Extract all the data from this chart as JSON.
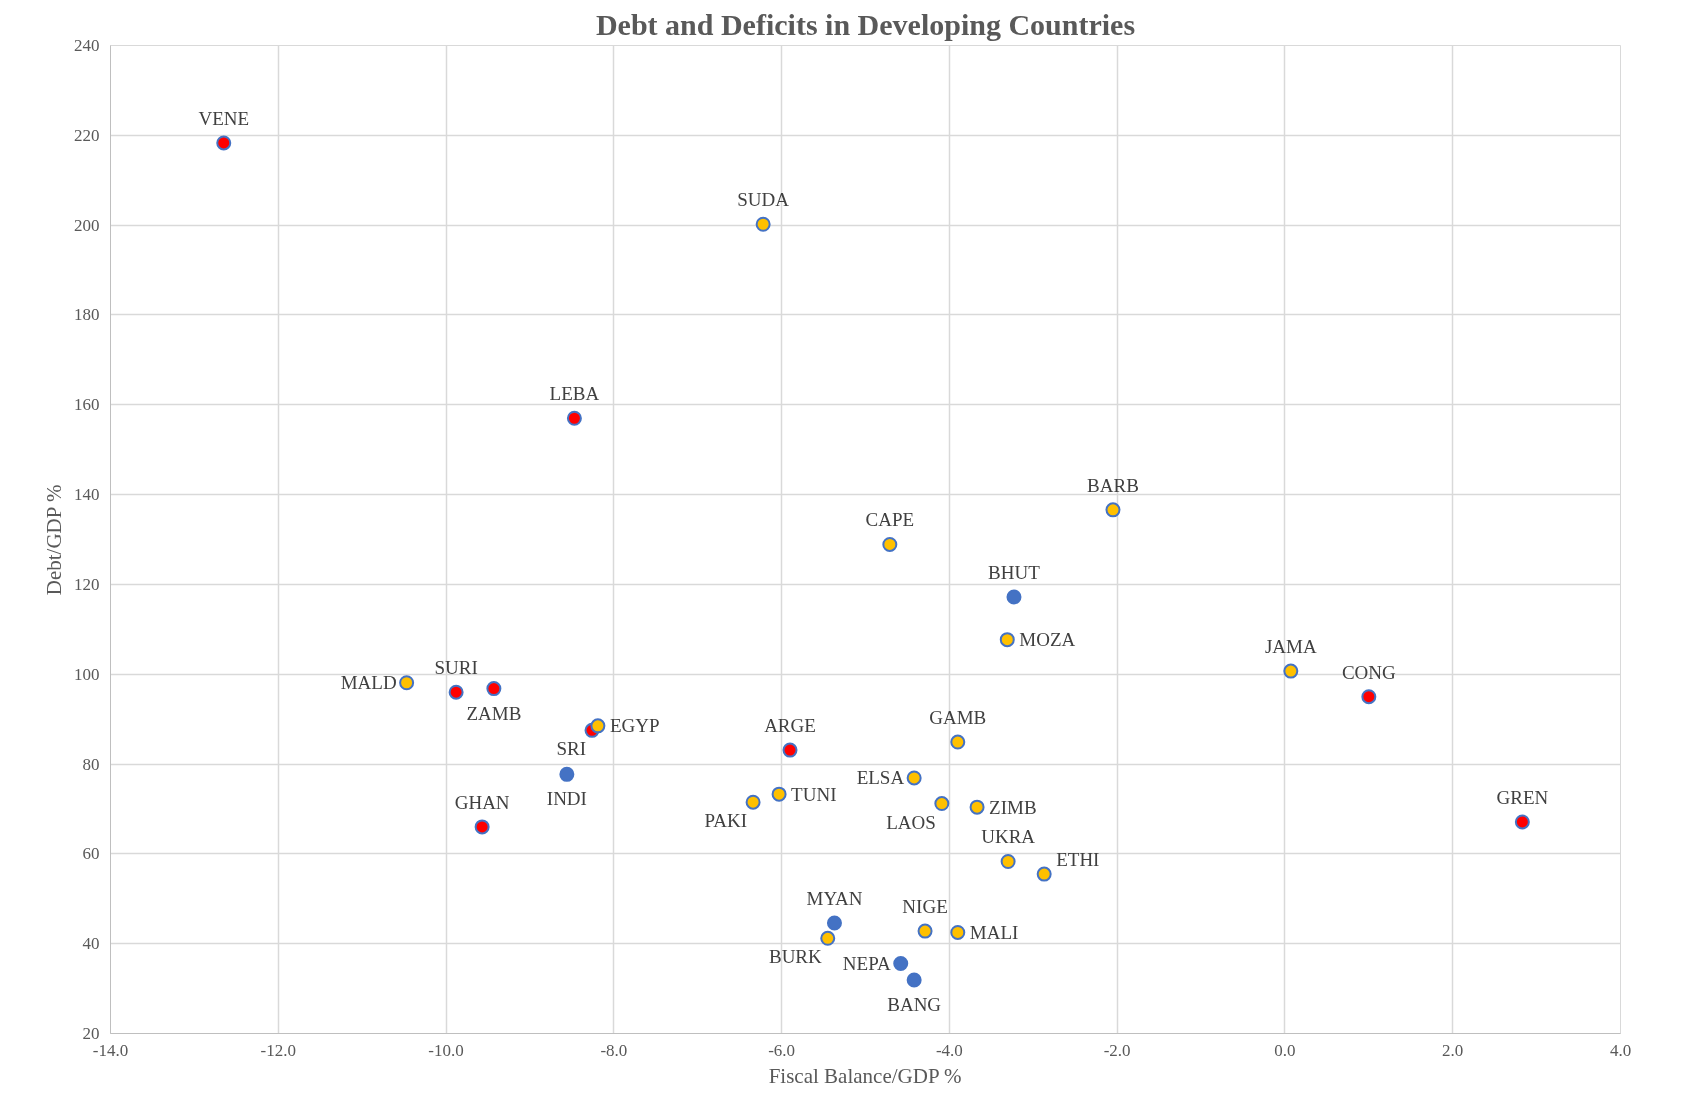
{
  "chart_data": {
    "type": "scatter",
    "title": "Debt and Deficits in Developing Countries",
    "xlabel": "Fiscal Balance/GDP %",
    "ylabel": "Debt/GDP %",
    "xlim": [
      -14,
      4
    ],
    "ylim": [
      20,
      240
    ],
    "xticks": [
      {
        "value": -14,
        "label": "-14.0"
      },
      {
        "value": -12,
        "label": "-12.0"
      },
      {
        "value": -10,
        "label": "-10.0"
      },
      {
        "value": -8,
        "label": "-8.0"
      },
      {
        "value": -6,
        "label": "-6.0"
      },
      {
        "value": -4,
        "label": "-4.0"
      },
      {
        "value": -2,
        "label": "-2.0"
      },
      {
        "value": 0,
        "label": "0.0"
      },
      {
        "value": 2,
        "label": "2.0"
      },
      {
        "value": 4,
        "label": "4.0"
      }
    ],
    "yticks": [
      20,
      40,
      60,
      80,
      100,
      120,
      140,
      160,
      180,
      200,
      220,
      240
    ],
    "grid": true,
    "marker": "circle",
    "series": [
      {
        "color": "#ff0000",
        "x": [
          -12.65,
          -8.47,
          1.0,
          -9.88,
          -9.43,
          -8.26,
          -5.9,
          -9.57,
          2.83
        ],
        "values": [
          218.3,
          157.0,
          95.0,
          96.0,
          96.8,
          87.5,
          83.1,
          66.0,
          67.1
        ]
      },
      {
        "color": "#ffc000",
        "x": [
          -6.22,
          -2.05,
          -4.71,
          -3.31,
          0.07,
          -10.47,
          -8.19,
          -3.9,
          -4.42,
          -6.03,
          -6.34,
          -4.09,
          -3.67,
          -3.3,
          -2.87,
          -5.45,
          -4.29,
          -3.9
        ],
        "values": [
          200.2,
          136.6,
          128.9,
          107.7,
          100.7,
          98.1,
          88.5,
          84.9,
          76.9,
          73.3,
          71.5,
          71.2,
          70.4,
          58.3,
          55.5,
          41.2,
          42.8,
          42.5
        ]
      },
      {
        "color": "#4472c4",
        "x": [
          -3.23,
          -8.56,
          -5.37,
          -4.58,
          -4.42
        ],
        "values": [
          117.2,
          77.7,
          44.6,
          35.6,
          31.9
        ]
      }
    ],
    "annotations": [
      {
        "text": "VENE",
        "x": -12.65,
        "y": 218.3
      },
      {
        "text": "LEBA",
        "x": -8.47,
        "y": 157.0
      },
      {
        "text": "CONG",
        "x": 1.0,
        "y": 95.0
      },
      {
        "text": "SURI",
        "x": -9.88,
        "y": 96.0
      },
      {
        "text": "ZAMB",
        "x": -9.43,
        "y": 96.8
      },
      {
        "text": "SRI",
        "x": -8.26,
        "y": 87.5
      },
      {
        "text": "ARGE",
        "x": -5.9,
        "y": 83.1
      },
      {
        "text": "GHAN",
        "x": -9.57,
        "y": 66.0
      },
      {
        "text": "GREN",
        "x": 2.83,
        "y": 67.1
      },
      {
        "text": "SUDA",
        "x": -6.22,
        "y": 200.2
      },
      {
        "text": "BARB",
        "x": -2.05,
        "y": 136.6
      },
      {
        "text": "CAPE",
        "x": -4.71,
        "y": 128.9
      },
      {
        "text": "MOZA",
        "x": -3.31,
        "y": 107.7
      },
      {
        "text": "JAMA",
        "x": 0.07,
        "y": 100.7
      },
      {
        "text": "MALD",
        "x": -10.47,
        "y": 98.1
      },
      {
        "text": "EGYP",
        "x": -8.19,
        "y": 88.5
      },
      {
        "text": "GAMB",
        "x": -3.9,
        "y": 84.9
      },
      {
        "text": "ELSA",
        "x": -4.42,
        "y": 76.9
      },
      {
        "text": "TUNI",
        "x": -6.03,
        "y": 73.3
      },
      {
        "text": "PAKI",
        "x": -6.34,
        "y": 71.5
      },
      {
        "text": "LAOS",
        "x": -4.09,
        "y": 71.2
      },
      {
        "text": "ZIMB",
        "x": -3.67,
        "y": 70.4
      },
      {
        "text": "UKRA",
        "x": -3.3,
        "y": 58.3
      },
      {
        "text": "ETHI",
        "x": -2.87,
        "y": 55.5
      },
      {
        "text": "BURK",
        "x": -5.45,
        "y": 41.2
      },
      {
        "text": "NIGE",
        "x": -4.29,
        "y": 42.8
      },
      {
        "text": "MALI",
        "x": -3.9,
        "y": 42.5
      },
      {
        "text": "BHUT",
        "x": -3.23,
        "y": 117.2
      },
      {
        "text": "INDI",
        "x": -8.56,
        "y": 77.7
      },
      {
        "text": "MYAN",
        "x": -5.37,
        "y": 44.6
      },
      {
        "text": "NEPA",
        "x": -4.58,
        "y": 35.6
      },
      {
        "text": "BANG",
        "x": -4.42,
        "y": 31.9
      }
    ]
  }
}
